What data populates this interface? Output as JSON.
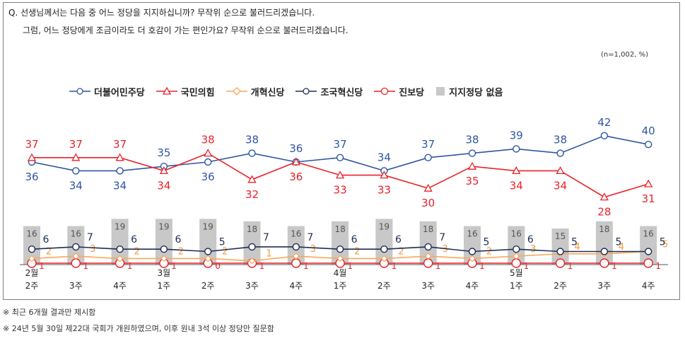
{
  "question": {
    "line1": "Q. 선생님께서는 다음 중 어느 정당을 지지하십니까? 무작위 순으로 불러드리겠습니다.",
    "line2": "그럼, 어느 정당에게 조금이라도 더 호감이 가는 편인가요? 무작위 순으로 불러드리겠습니다."
  },
  "unit_note": "(n=1,002, %)",
  "notes": [
    "※ 최근 6개월 결과만 제시함",
    "※ 24년 5월 30일 제22대 국회가 개원하였으며, 이후 원내 3석 이상 정당만 질문함"
  ],
  "chart_data": {
    "type": "line",
    "categories": [
      "2월 2주",
      "3주",
      "4주",
      "3월 1주",
      "2주",
      "3주",
      "4주",
      "4월 1주",
      "2주",
      "3주",
      "4주",
      "5월 1주",
      "2주",
      "3주",
      "4주"
    ],
    "x_labels": [
      {
        "top": "2월",
        "bottom": "2주"
      },
      {
        "top": "",
        "bottom": "3주"
      },
      {
        "top": "",
        "bottom": "4주"
      },
      {
        "top": "3월",
        "bottom": "1주"
      },
      {
        "top": "",
        "bottom": "2주"
      },
      {
        "top": "",
        "bottom": "3주"
      },
      {
        "top": "",
        "bottom": "4주"
      },
      {
        "top": "4월",
        "bottom": "1주"
      },
      {
        "top": "",
        "bottom": "2주"
      },
      {
        "top": "",
        "bottom": "3주"
      },
      {
        "top": "",
        "bottom": "4주"
      },
      {
        "top": "5월",
        "bottom": "1주"
      },
      {
        "top": "",
        "bottom": "2주"
      },
      {
        "top": "",
        "bottom": "3주"
      },
      {
        "top": "",
        "bottom": "4주"
      }
    ],
    "ylim": [
      0,
      50
    ],
    "series": [
      {
        "name": "더불어민주당",
        "type": "line",
        "marker": "circle",
        "color": "#2f55a4",
        "label_color": "#2f55a4",
        "values": [
          36,
          34,
          34,
          35,
          36,
          38,
          36,
          37,
          34,
          37,
          38,
          39,
          38,
          42,
          40
        ]
      },
      {
        "name": "국민의힘",
        "type": "line",
        "marker": "triangle",
        "color": "#e8232a",
        "label_color": "#e8232a",
        "values": [
          37,
          37,
          37,
          34,
          38,
          32,
          36,
          33,
          33,
          30,
          35,
          34,
          34,
          28,
          31
        ]
      },
      {
        "name": "개혁신당",
        "type": "line",
        "marker": "diamond",
        "color": "#f7a85c",
        "label_color": "#f39a3c",
        "values": [
          2,
          3,
          2,
          2,
          2,
          1,
          3,
          2,
          2,
          3,
          2,
          3,
          4,
          4,
          5
        ]
      },
      {
        "name": "조국혁신당",
        "type": "line",
        "marker": "circle",
        "color": "#1f2e55",
        "label_color": "#1f2e55",
        "values": [
          6,
          7,
          6,
          6,
          5,
          7,
          7,
          6,
          6,
          7,
          5,
          6,
          5,
          5,
          5
        ]
      },
      {
        "name": "진보당",
        "type": "line",
        "marker": "circle-large",
        "color": "#e8232a",
        "label_color": "#e8232a",
        "values": [
          1,
          1,
          1,
          1,
          0,
          1,
          1,
          1,
          1,
          1,
          1,
          1,
          1,
          1,
          1
        ]
      },
      {
        "name": "지지정당 없음",
        "type": "bar",
        "color": "#c8c8c8",
        "label_color": "#555555",
        "values": [
          16,
          16,
          19,
          19,
          19,
          18,
          16,
          18,
          19,
          18,
          16,
          16,
          15,
          18,
          16
        ]
      }
    ],
    "legend": "top"
  }
}
